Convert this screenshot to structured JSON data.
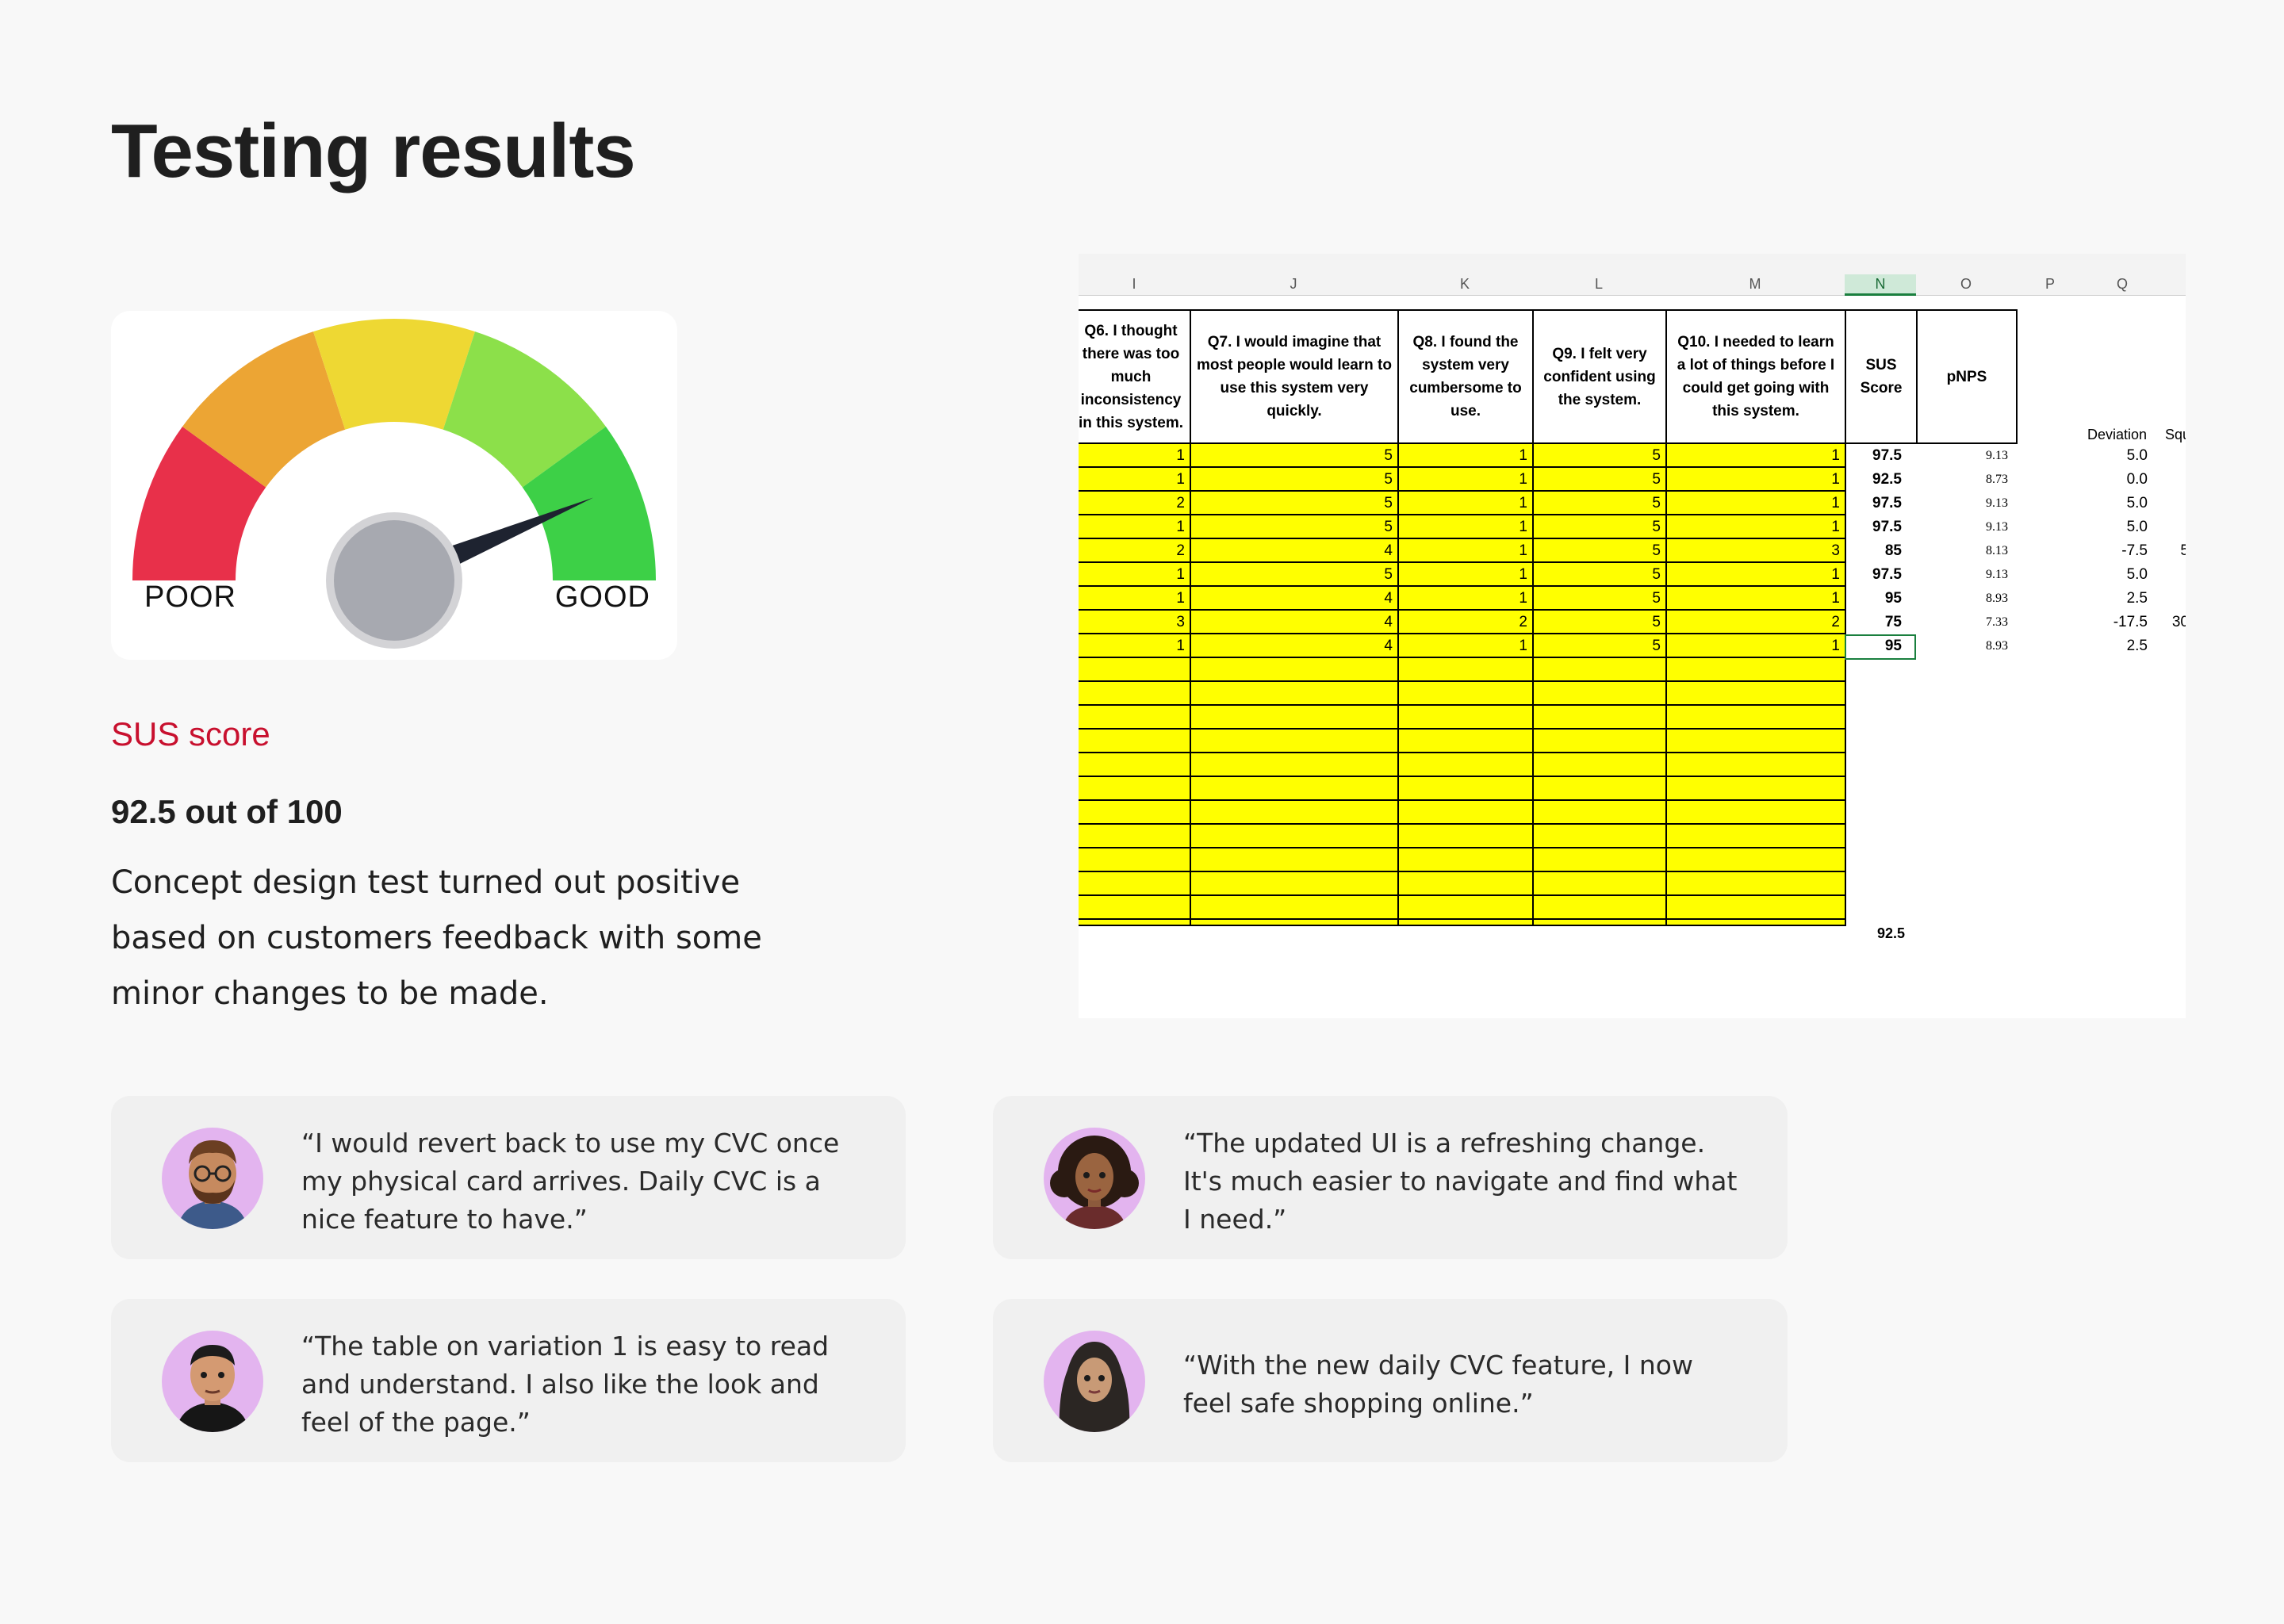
{
  "page": {
    "title": "Testing results"
  },
  "gauge": {
    "poor_label": "POOR",
    "good_label": "GOOD",
    "level": 0.9,
    "colors": [
      "#e8304a",
      "#eca534",
      "#eed833",
      "#8ce04a",
      "#3dd047"
    ],
    "needle_color": "#1e2330",
    "hub_color": "#a7a9b0"
  },
  "sus": {
    "label": "SUS score",
    "value": "92.5 out of 100",
    "description": "Concept design test turned out positive based on customers feedback with some minor changes to be made.",
    "accent_color": "#c8102e"
  },
  "spreadsheet": {
    "column_letters": [
      "I",
      "J",
      "K",
      "L",
      "M",
      "N",
      "O",
      "P",
      "Q"
    ],
    "active_column": "N",
    "headers": {
      "q6": "Q6. I thought there was too much inconsistency in this system.",
      "q7": "Q7. I would imagine that most people would learn to use this system very quickly.",
      "q8": "Q8. I found the system very cumbersome to use.",
      "q9": "Q9. I felt very confident using the system.",
      "q10": "Q10. I needed to learn a lot of things before I could get going with this system.",
      "sus": "SUS Score",
      "pnps": "pNPS",
      "deviation": "Deviation",
      "squared": "Squ"
    },
    "rows": [
      {
        "q6": "1",
        "q7": "5",
        "q8": "1",
        "q9": "5",
        "q10": "1",
        "sus": "97.5",
        "pnps": "9.13",
        "dev": "5.0",
        "extra": ""
      },
      {
        "q6": "1",
        "q7": "5",
        "q8": "1",
        "q9": "5",
        "q10": "1",
        "sus": "92.5",
        "pnps": "8.73",
        "dev": "0.0",
        "extra": ""
      },
      {
        "q6": "2",
        "q7": "5",
        "q8": "1",
        "q9": "5",
        "q10": "1",
        "sus": "97.5",
        "pnps": "9.13",
        "dev": "5.0",
        "extra": ""
      },
      {
        "q6": "1",
        "q7": "5",
        "q8": "1",
        "q9": "5",
        "q10": "1",
        "sus": "97.5",
        "pnps": "9.13",
        "dev": "5.0",
        "extra": ""
      },
      {
        "q6": "2",
        "q7": "4",
        "q8": "1",
        "q9": "5",
        "q10": "3",
        "sus": "85",
        "pnps": "8.13",
        "dev": "-7.5",
        "extra": "5"
      },
      {
        "q6": "1",
        "q7": "5",
        "q8": "1",
        "q9": "5",
        "q10": "1",
        "sus": "97.5",
        "pnps": "9.13",
        "dev": "5.0",
        "extra": ""
      },
      {
        "q6": "1",
        "q7": "4",
        "q8": "1",
        "q9": "5",
        "q10": "1",
        "sus": "95",
        "pnps": "8.93",
        "dev": "2.5",
        "extra": ""
      },
      {
        "q6": "3",
        "q7": "4",
        "q8": "2",
        "q9": "5",
        "q10": "2",
        "sus": "75",
        "pnps": "7.33",
        "dev": "-17.5",
        "extra": "30"
      },
      {
        "q6": "1",
        "q7": "4",
        "q8": "1",
        "q9": "5",
        "q10": "1",
        "sus": "95",
        "pnps": "8.93",
        "dev": "2.5",
        "extra": ""
      }
    ],
    "average": "92.5",
    "cell_fill_color": "#ffff00"
  },
  "testimonials": [
    {
      "quote": "“I would revert back to use my CVC once my physical card arrives. Daily CVC is a nice feature to have.”",
      "avatar": "avatar-man-glasses-beard"
    },
    {
      "quote": "“The updated UI is a refreshing change. It's much easier to navigate and find what I need.”",
      "avatar": "avatar-woman-curly-hair"
    },
    {
      "quote": "“The table on variation 1 is easy to read and understand. I also like the look and feel of the page.”",
      "avatar": "avatar-man-short-hair"
    },
    {
      "quote": "“With the new daily CVC feature, I now feel safe shopping online.”",
      "avatar": "avatar-woman-hijab"
    }
  ]
}
